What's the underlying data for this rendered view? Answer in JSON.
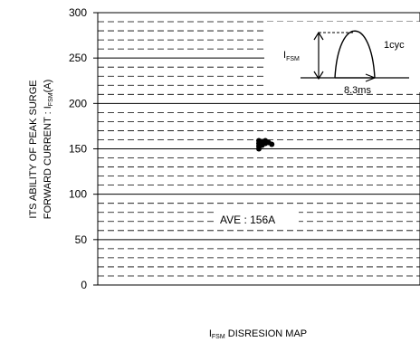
{
  "chart_data": {
    "type": "scatter",
    "ylabel_line1": "ITS ABILITY OF PEAK SURGE",
    "ylabel_line2_main": "FORWARD CURRENT : I",
    "ylabel_line2_sub": "FSM",
    "ylabel_line2_unit": "(A)",
    "xlabel_main": "I",
    "xlabel_sub": "FSM",
    "xlabel_rest": " DISRESION MAP",
    "yticks": [
      0,
      50,
      100,
      150,
      200,
      250,
      300
    ],
    "ylim": [
      0,
      300
    ],
    "minor_step": 10,
    "grid": true,
    "average_label": "AVE : 156A",
    "points": [
      {
        "x": 0.5,
        "y": 150
      },
      {
        "x": 0.5,
        "y": 153
      },
      {
        "x": 0.5,
        "y": 156
      },
      {
        "x": 0.5,
        "y": 159
      },
      {
        "x": 0.51,
        "y": 158
      },
      {
        "x": 0.51,
        "y": 154
      },
      {
        "x": 0.52,
        "y": 156
      },
      {
        "x": 0.52,
        "y": 159
      },
      {
        "x": 0.53,
        "y": 157
      },
      {
        "x": 0.54,
        "y": 155
      }
    ],
    "inset": {
      "amp_label_main": "I",
      "amp_label_sub": "FSM",
      "cycle_label": "1cyc",
      "period_label": "8.3ms"
    }
  }
}
